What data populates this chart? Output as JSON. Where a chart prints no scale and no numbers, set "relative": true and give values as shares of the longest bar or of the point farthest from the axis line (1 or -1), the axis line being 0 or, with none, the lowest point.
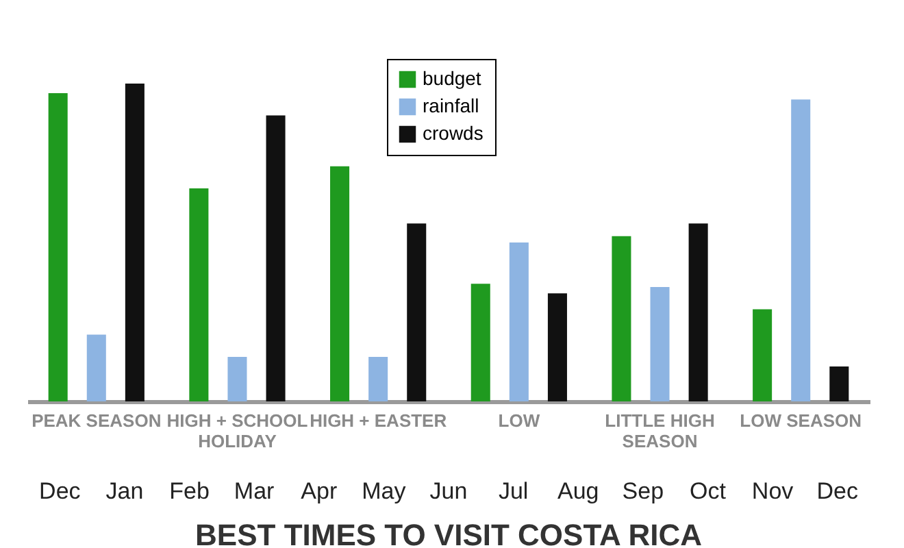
{
  "chart_data": {
    "type": "bar",
    "title": "BEST TIMES TO VISIT COSTA RICA",
    "relative": true,
    "categories": [
      "PEAK SEASON",
      "HIGH + SCHOOL HOLIDAY",
      "HIGH + EASTER",
      "LOW",
      "LITTLE HIGH SEASON",
      "LOW SEASON"
    ],
    "series": [
      {
        "name": "budget",
        "color": "#1f9a1f",
        "values": [
          0.97,
          0.67,
          0.74,
          0.37,
          0.52,
          0.29
        ]
      },
      {
        "name": "rainfall",
        "color": "#8db4e2",
        "values": [
          0.21,
          0.14,
          0.14,
          0.5,
          0.36,
          0.95
        ]
      },
      {
        "name": "crowds",
        "color": "#111111",
        "values": [
          1,
          0.9,
          0.56,
          0.34,
          0.56,
          0.11
        ]
      }
    ],
    "legend": "top",
    "annotations": [
      "Dec",
      "Jan",
      "Feb",
      "Mar",
      "Apr",
      "May",
      "Jun",
      "Jul",
      "Aug",
      "Sep",
      "Oct",
      "Nov",
      "Dec"
    ]
  }
}
